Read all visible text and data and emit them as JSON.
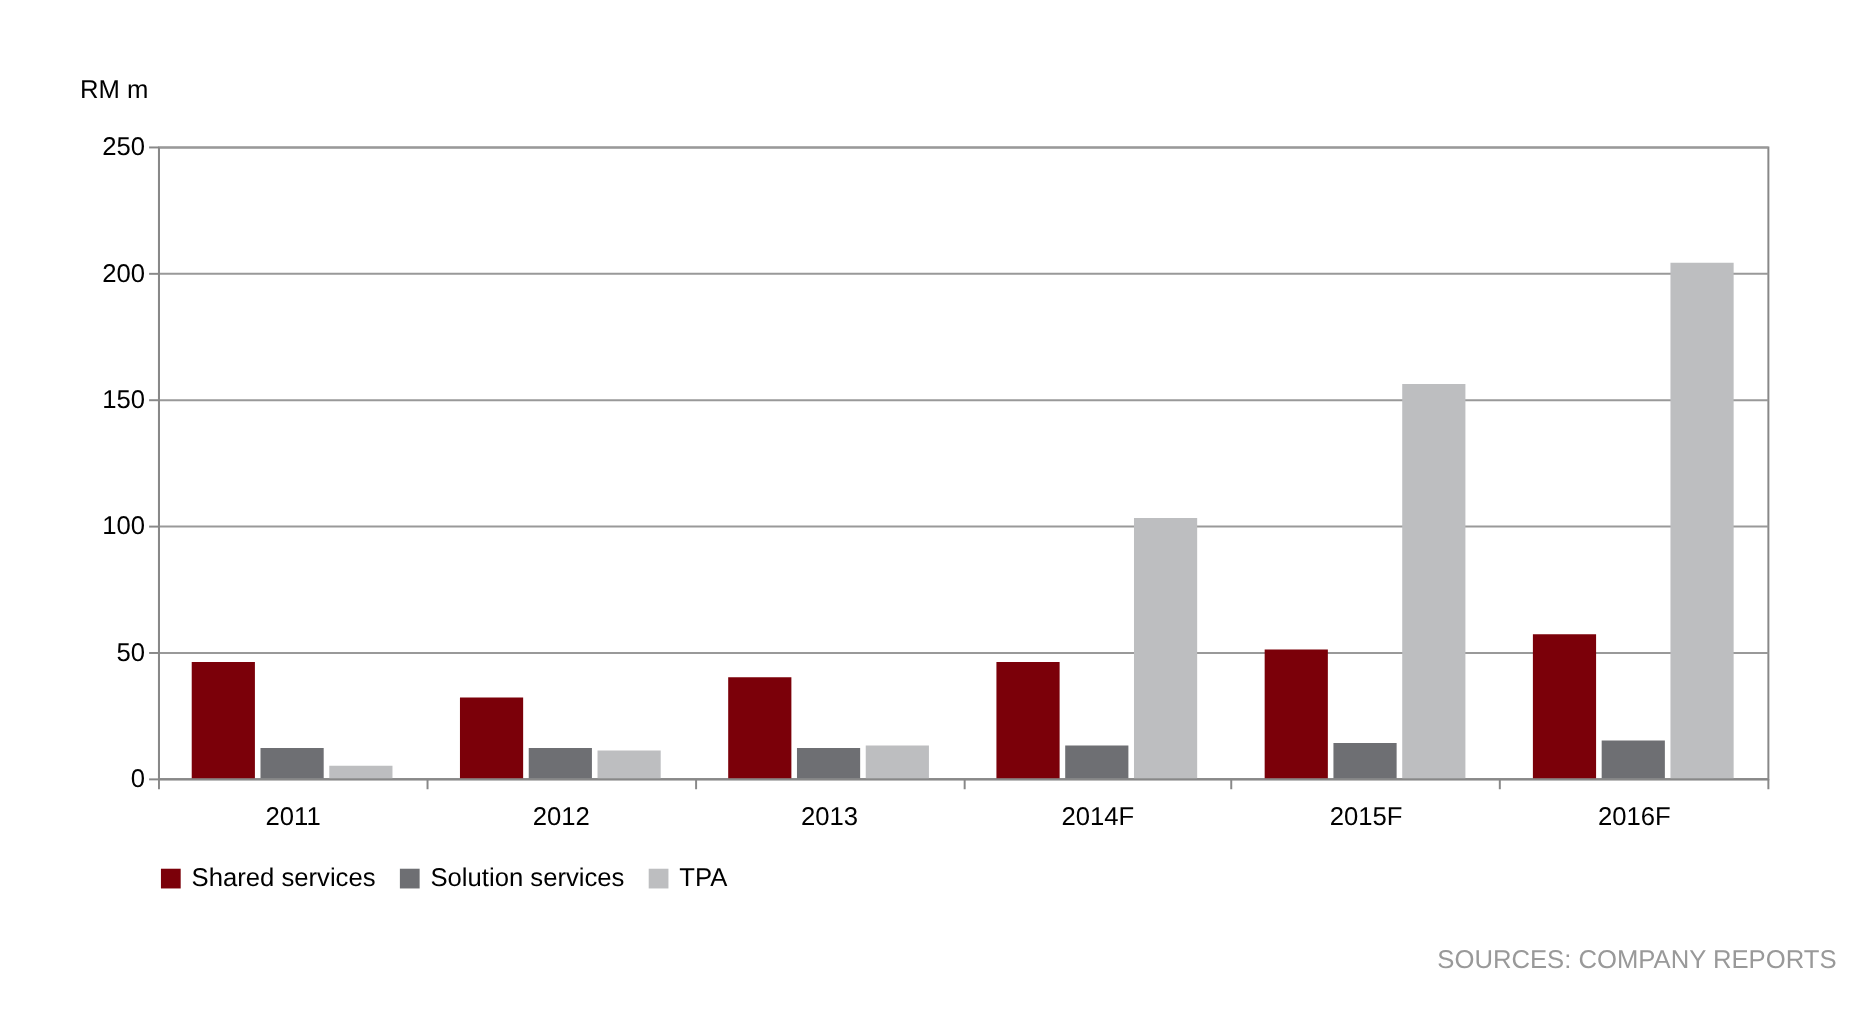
{
  "chart_data": {
    "type": "bar",
    "ylabel": "RM m",
    "categories": [
      "2011",
      "2012",
      "2013",
      "2014F",
      "2015F",
      "2016F"
    ],
    "series": [
      {
        "name": "Shared services",
        "color": "#7b0009",
        "values": [
          46,
          32,
          40,
          46,
          51,
          57
        ]
      },
      {
        "name": "Solution services",
        "color": "#6e6f73",
        "values": [
          12,
          12,
          12,
          13,
          14,
          15
        ]
      },
      {
        "name": "TPA",
        "color": "#bdbec0",
        "values": [
          5,
          11,
          13,
          103,
          156,
          204
        ]
      }
    ],
    "ylim": [
      0,
      250
    ],
    "yticks": [
      0,
      50,
      100,
      150,
      200,
      250
    ],
    "grid": "y",
    "legend": "bottom",
    "annotations": [
      "SOURCES: COMPANY REPORTS"
    ]
  }
}
